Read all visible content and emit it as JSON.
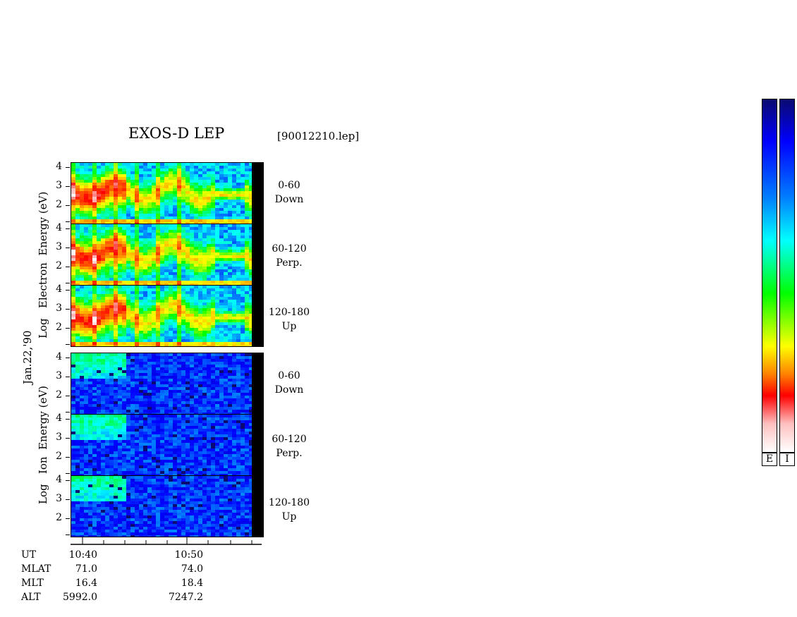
{
  "header": {
    "title": "EXOS-D LEP",
    "file": "[90012210.lep]"
  },
  "date_label": "Jan.22,'90",
  "electron_label": [
    "Log",
    "Electron",
    "Energy",
    "(eV)"
  ],
  "ion_label": [
    "Log",
    "Ion",
    "Energy",
    "(eV)"
  ],
  "y_ticks": [
    "4",
    "3",
    "2"
  ],
  "angles": [
    {
      "range": "0-60",
      "dir": "Down"
    },
    {
      "range": "60-120",
      "dir": "Perp."
    },
    {
      "range": "120-180",
      "dir": "Up"
    }
  ],
  "ephemeris": {
    "rows": [
      {
        "label": "UT",
        "v1": "10:40",
        "v2": "10:50"
      },
      {
        "label": "MLAT",
        "v1": "71.0",
        "v2": "74.0"
      },
      {
        "label": "MLT",
        "v1": "16.4",
        "v2": "18.4"
      },
      {
        "label": "ALT",
        "v1": "5992.0",
        "v2": "7247.2"
      }
    ]
  },
  "colorbars": {
    "electron_label": "E",
    "ion_label": "I"
  },
  "chart_data": {
    "type": "heatmap",
    "title": "EXOS-D LEP",
    "xlabel": "UT",
    "x_ticks": [
      "10:40",
      "10:50"
    ],
    "ylabel_electron": "Log Electron Energy (eV)",
    "ylabel_ion": "Log Ion Energy (eV)",
    "y_ticks": [
      4,
      3,
      2
    ],
    "panels": [
      {
        "species": "Electron",
        "pitch_angle": "0-60",
        "direction": "Down"
      },
      {
        "species": "Electron",
        "pitch_angle": "60-120",
        "direction": "Perp."
      },
      {
        "species": "Electron",
        "pitch_angle": "120-180",
        "direction": "Up"
      },
      {
        "species": "Ion",
        "pitch_angle": "0-60",
        "direction": "Down"
      },
      {
        "species": "Ion",
        "pitch_angle": "60-120",
        "direction": "Perp."
      },
      {
        "species": "Ion",
        "pitch_angle": "120-180",
        "direction": "Up"
      }
    ],
    "colormap": [
      "#0a0a70",
      "#0000ff",
      "#00ffff",
      "#00ff00",
      "#ffff00",
      "#ff8000",
      "#ff0000",
      "#ffffff"
    ]
  }
}
